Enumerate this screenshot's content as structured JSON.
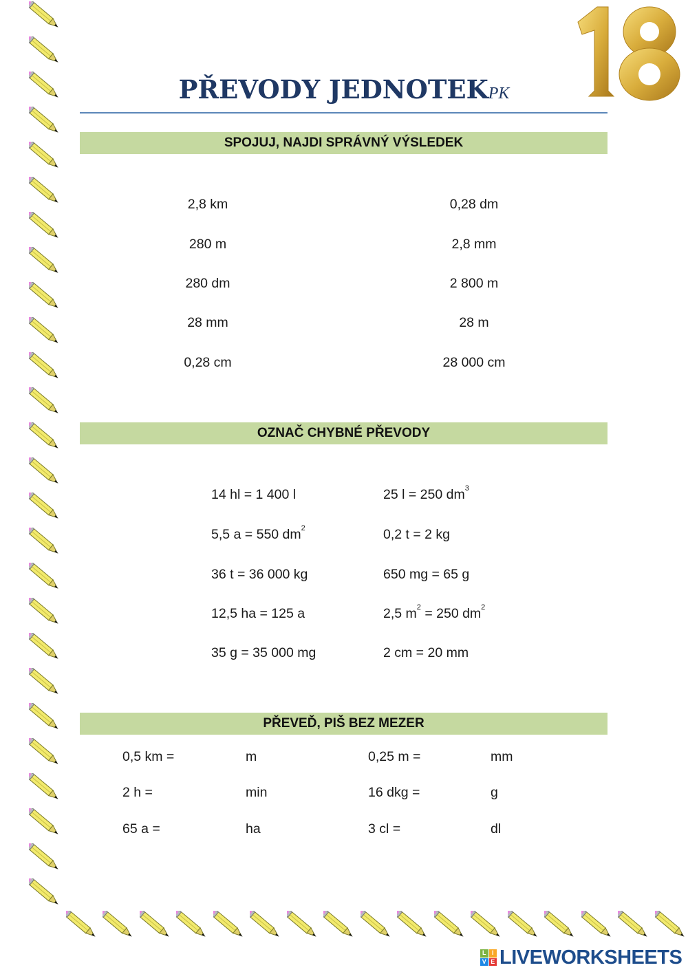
{
  "title": {
    "main": "PŘEVODY JEDNOTEK",
    "suffix": "PK"
  },
  "balloon_text": "18",
  "colors": {
    "title": "#1f3864",
    "section_bar": "#c5d9a0",
    "rule": "#5b86b8",
    "logo": "#1e4d8c"
  },
  "section1": {
    "heading": "SPOJUJ, NAJDI SPRÁVNÝ VÝSLEDEK",
    "left": [
      "2,8 km",
      "280 m",
      "280 dm",
      "28 mm",
      "0,28 cm"
    ],
    "right": [
      "0,28 dm",
      "2,8 mm",
      "2 800 m",
      "28 m",
      "28 000 cm"
    ]
  },
  "section2": {
    "heading": "OZNAČ CHYBNÉ PŘEVODY",
    "left": [
      [
        {
          "t": "14 hl = 1 400 l"
        }
      ],
      [
        {
          "t": "5,5 a = 550 dm"
        },
        {
          "sup": "2"
        }
      ],
      [
        {
          "t": "36 t = 36 000 kg"
        }
      ],
      [
        {
          "t": "12,5 ha = 125 a"
        }
      ],
      [
        {
          "t": "35 g = 35 000 mg"
        }
      ]
    ],
    "right": [
      [
        {
          "t": "25 l = 250 dm"
        },
        {
          "sup": "3"
        }
      ],
      [
        {
          "t": "0,2 t = 2 kg"
        }
      ],
      [
        {
          "t": "650 mg = 65 g"
        }
      ],
      [
        {
          "t": "2,5 m"
        },
        {
          "sup": "2"
        },
        {
          "t": " = 250 dm"
        },
        {
          "sup": "2"
        }
      ],
      [
        {
          "t": "2 cm = 20 mm"
        }
      ]
    ]
  },
  "section3": {
    "heading": "PŘEVEĎ, PIŠ BEZ MEZER",
    "rows": [
      {
        "q1": "0,5 km =",
        "u1": "m",
        "q2": "0,25 m =",
        "u2": "mm"
      },
      {
        "q1": "2 h =",
        "u1": "min",
        "q2": "16 dkg =",
        "u2": "g"
      },
      {
        "q1": "65 a =",
        "u1": "ha",
        "q2": "3 cl =",
        "u2": "dl"
      }
    ]
  },
  "logo": {
    "text": "LIVEWORKSHEETS",
    "badge": [
      "L",
      "I",
      "V",
      "E"
    ]
  },
  "icons": {
    "border": "pencil-icon",
    "decoration": "gold-balloon-18"
  }
}
